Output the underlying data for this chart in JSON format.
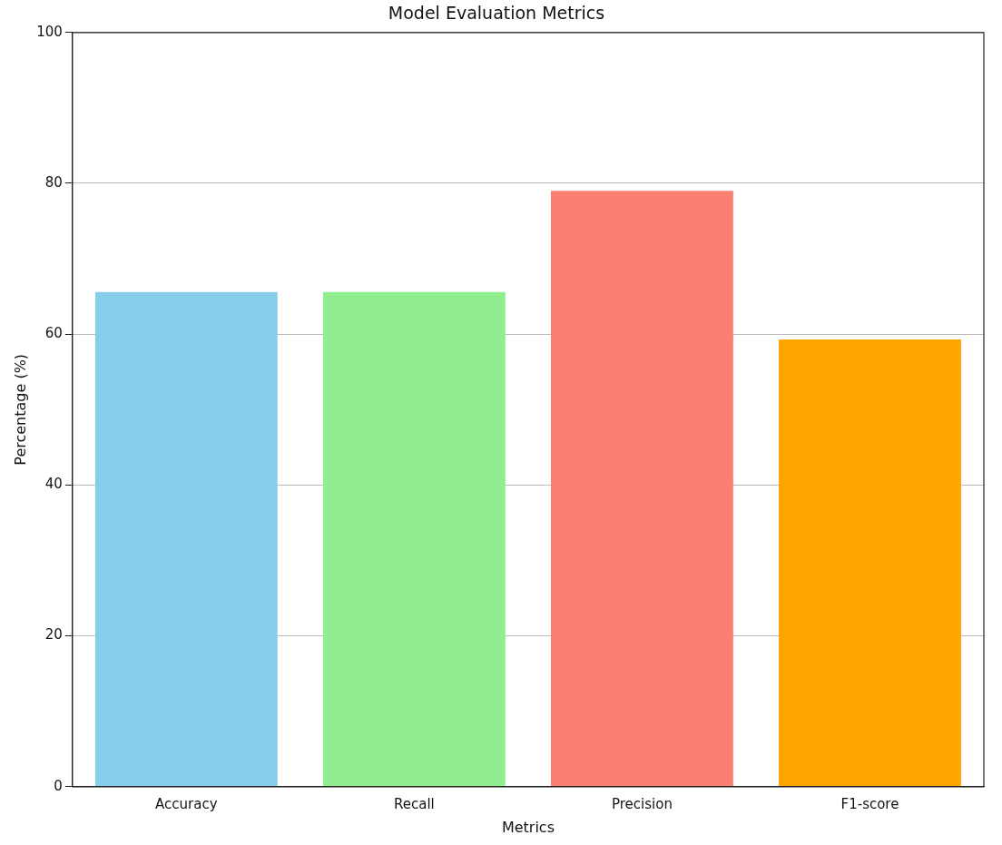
{
  "chart_data": {
    "type": "bar",
    "title": "Model Evaluation Metrics",
    "xlabel": "Metrics",
    "ylabel": "Percentage (%)",
    "categories": [
      "Accuracy",
      "Recall",
      "Precision",
      "F1-score"
    ],
    "values": [
      65.6,
      65.6,
      79.0,
      59.3
    ],
    "colors": [
      "#87ceeb",
      "#90ee90",
      "#fa8072",
      "#ffa500"
    ],
    "ylim": [
      0,
      100
    ],
    "yticks": [
      0,
      20,
      40,
      60,
      80,
      100
    ],
    "grid": "y"
  }
}
